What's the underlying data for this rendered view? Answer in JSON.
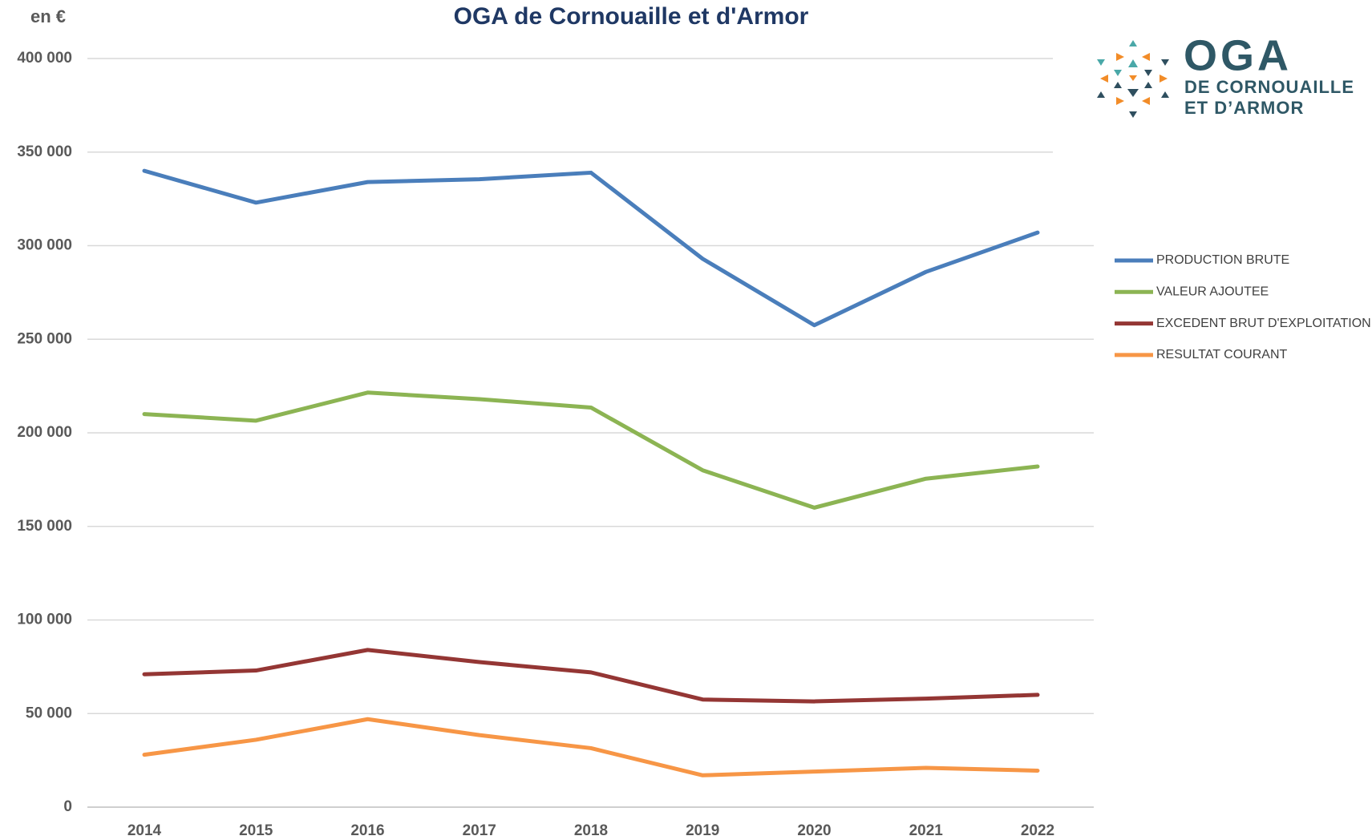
{
  "chart_data": {
    "type": "line",
    "title": "OGA de Cornouaille et d'Armor",
    "y_label": "en €",
    "categories": [
      "2014",
      "2015",
      "2016",
      "2017",
      "2018",
      "2019",
      "2020",
      "2021",
      "2022"
    ],
    "series": [
      {
        "name": "PRODUCTION BRUTE",
        "color": "#4a7ebb",
        "values": [
          340000,
          323000,
          334000,
          335500,
          339000,
          293000,
          257500,
          286000,
          307000
        ]
      },
      {
        "name": "VALEUR AJOUTEE",
        "color": "#8cb453",
        "values": [
          210000,
          206500,
          221500,
          218000,
          213500,
          180000,
          160000,
          175500,
          182000
        ]
      },
      {
        "name": "EXCEDENT BRUT D'EXPLOITATION",
        "color": "#943634",
        "values": [
          71000,
          73000,
          84000,
          77500,
          72000,
          57500,
          56500,
          58000,
          60000
        ]
      },
      {
        "name": "RESULTAT COURANT",
        "color": "#f79646",
        "values": [
          28000,
          36000,
          47000,
          38500,
          31500,
          17000,
          19000,
          21000,
          19500
        ]
      }
    ],
    "ylim": [
      0,
      400000
    ],
    "yticks": [
      0,
      {
        "value": 50000,
        "label": "50 000"
      },
      {
        "value": 100000,
        "label": "100 000"
      },
      {
        "value": 150000,
        "label": "150 000"
      },
      {
        "value": 200000,
        "label": "200 000"
      },
      {
        "value": 250000,
        "label": "250 000"
      },
      {
        "value": 300000,
        "label": "300 000"
      },
      {
        "value": 350000,
        "label": "350 000"
      },
      {
        "value": 400000,
        "label": "400 000"
      }
    ],
    "grid": true,
    "legend": "right"
  },
  "logo": {
    "name": "OGA",
    "line1": "DE CORNOUAILLE",
    "line2": "ET D’ARMOR"
  }
}
